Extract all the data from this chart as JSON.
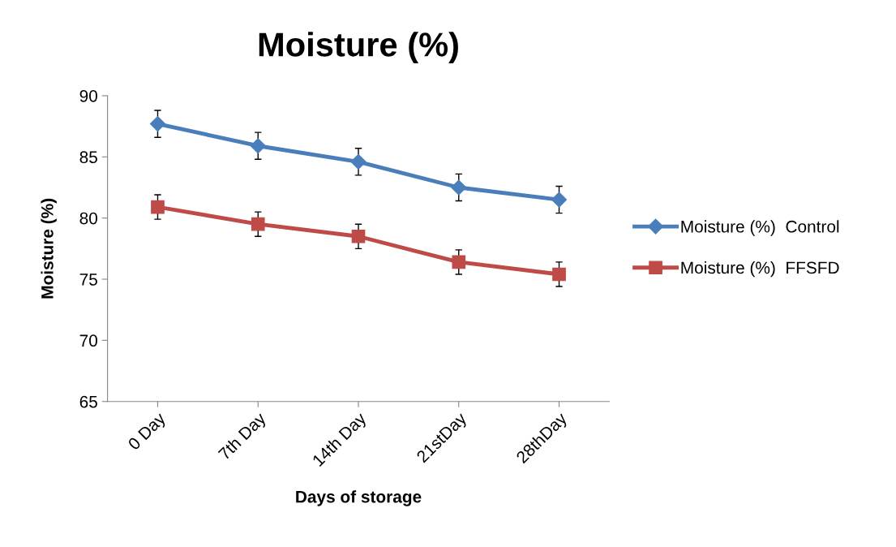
{
  "chart_data": {
    "type": "line",
    "title": "Moisture (%)",
    "xlabel": "Days of storage",
    "ylabel": "Moisture (%)",
    "categories": [
      "0 Day",
      "7th Day",
      "14th Day",
      "21stDay",
      "28thDay"
    ],
    "series": [
      {
        "name": "Moisture (%)  Control",
        "color": "#4a7ebb",
        "marker": "diamond",
        "values": [
          87.7,
          85.9,
          84.6,
          82.5,
          81.5
        ],
        "errors": [
          1.1,
          1.1,
          1.1,
          1.1,
          1.1
        ]
      },
      {
        "name": "Moisture (%)  FFSFD",
        "color": "#be4b48",
        "marker": "square",
        "values": [
          80.9,
          79.5,
          78.5,
          76.4,
          75.4
        ],
        "errors": [
          1.0,
          1.0,
          1.0,
          1.0,
          1.0
        ]
      }
    ],
    "ylim": [
      65,
      90
    ],
    "yticks": [
      65,
      70,
      75,
      80,
      85,
      90
    ],
    "grid": false,
    "legend": "right",
    "line_style": "solid"
  }
}
